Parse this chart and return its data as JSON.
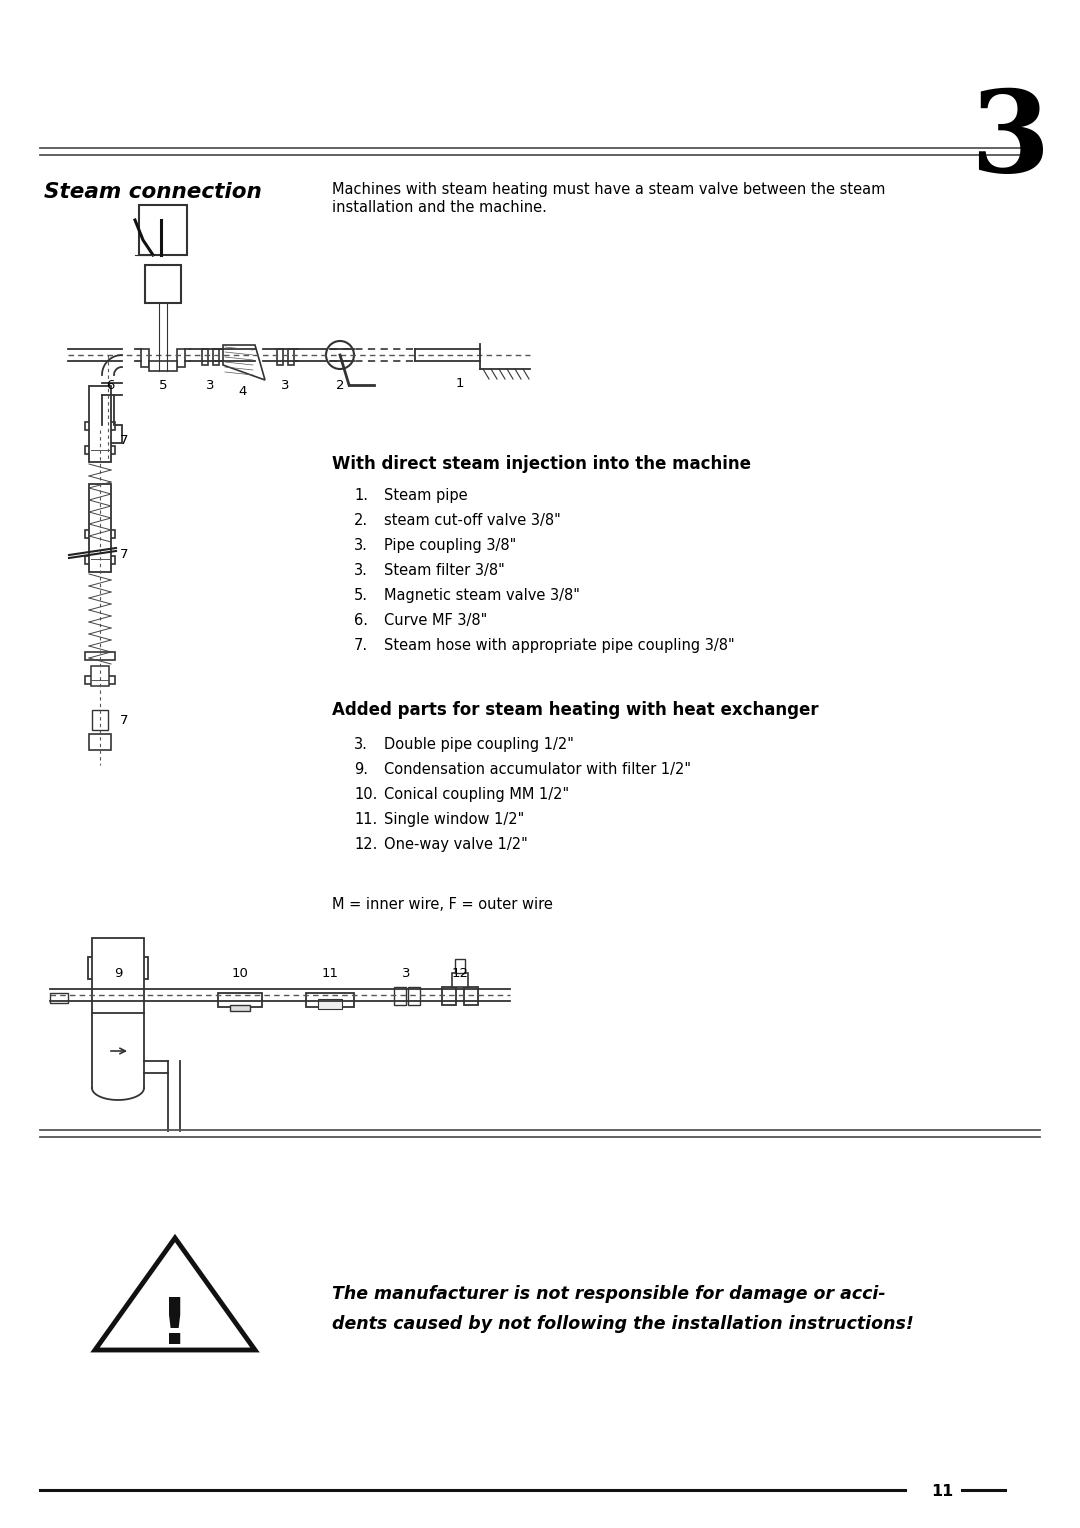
{
  "page_number": "11",
  "chapter_number": "3",
  "section_title": "Steam connection",
  "intro_line1": "Machines with steam heating must have a steam valve between the steam",
  "intro_line2": "installation and the machine.",
  "subheading1": "With direct steam injection into the machine",
  "items1_nums": [
    "1.",
    "2.",
    "3.",
    "3.",
    "5.",
    "6.",
    "7."
  ],
  "items1_text": [
    "Steam pipe",
    "steam cut-off valve 3/8\"",
    "Pipe coupling 3/8\"",
    "Steam filter 3/8\"",
    "Magnetic steam valve 3/8\"",
    "Curve MF 3/8\"",
    "Steam hose with appropriate pipe coupling 3/8\""
  ],
  "subheading2": "Added parts for steam heating with heat exchanger",
  "items2_nums": [
    "3.",
    "9.",
    "10.",
    "11.",
    "12."
  ],
  "items2_text": [
    "Double pipe coupling 1/2\"",
    "Condensation accumulator with filter 1/2\"",
    "Conical coupling MM 1/2\"",
    "Single window 1/2\"",
    "One-way valve 1/2\""
  ],
  "note_text": "M = inner wire, F = outer wire",
  "warning_line1": "The manufacturer is not responsible for damage or acci-",
  "warning_line2": "dents caused by not following the installation instructions!",
  "bg_color": "#ffffff",
  "text_color": "#000000"
}
